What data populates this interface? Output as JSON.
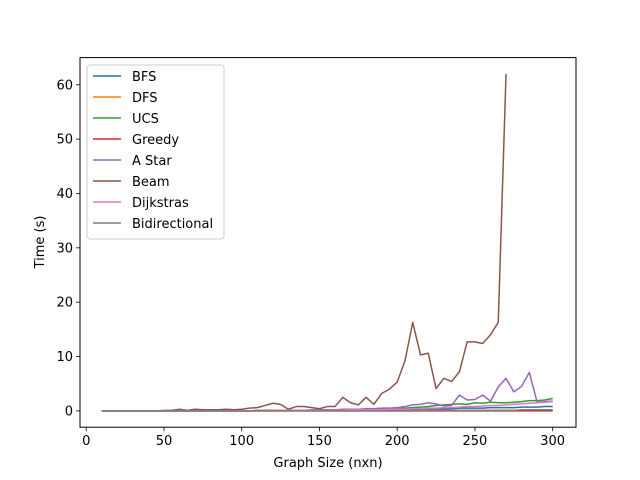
{
  "chart_data": {
    "type": "line",
    "xlabel": "Graph Size (nxn)",
    "ylabel": "Time (s)",
    "xlim": [
      -4,
      315
    ],
    "ylim": [
      -3,
      65
    ],
    "xticks": [
      0,
      50,
      100,
      150,
      200,
      250,
      300
    ],
    "yticks": [
      0,
      10,
      20,
      30,
      40,
      50,
      60
    ],
    "grid": false,
    "legend_position": "top-left",
    "x": [
      10,
      15,
      20,
      25,
      30,
      35,
      40,
      45,
      50,
      55,
      60,
      65,
      70,
      75,
      80,
      85,
      90,
      95,
      100,
      105,
      110,
      115,
      120,
      125,
      130,
      135,
      140,
      145,
      150,
      155,
      160,
      165,
      170,
      175,
      180,
      185,
      190,
      195,
      200,
      205,
      210,
      215,
      220,
      225,
      230,
      235,
      240,
      245,
      250,
      255,
      260,
      265,
      270,
      275,
      280,
      285,
      290,
      295,
      300
    ],
    "series": [
      {
        "name": "BFS",
        "color": "#1f77b4",
        "values": [
          0,
          0,
          0,
          0,
          0,
          0,
          0,
          0,
          0,
          0,
          0,
          0,
          0,
          0,
          0,
          0,
          0,
          0,
          0,
          0,
          0,
          0.1,
          0.1,
          0.1,
          0.1,
          0.1,
          0.1,
          0.1,
          0.1,
          0.1,
          0.1,
          0.1,
          0.2,
          0.2,
          0.2,
          0.2,
          0.2,
          0.2,
          0.2,
          0.3,
          0.3,
          0.3,
          0.4,
          0.4,
          0.4,
          0.4,
          0.5,
          0.5,
          0.5,
          0.5,
          0.6,
          0.6,
          0.6,
          0.6,
          0.7,
          0.7,
          0.7,
          0.8,
          0.8
        ]
      },
      {
        "name": "DFS",
        "color": "#ff7f0e",
        "values": [
          0,
          0,
          0,
          0,
          0,
          0,
          0,
          0,
          0,
          0,
          0,
          0,
          0,
          0,
          0,
          0,
          0,
          0,
          0,
          0,
          0,
          0,
          0,
          0,
          0,
          0,
          0,
          0,
          0,
          0,
          0,
          0,
          0,
          0,
          0,
          0,
          0,
          0,
          0,
          0,
          0,
          0,
          0.1,
          0.1,
          0.1,
          0.1,
          0.1,
          0.1,
          0.1,
          0.1,
          0.1,
          0.1,
          0.1,
          0.1,
          0.1,
          0.1,
          0.2,
          0.2,
          0.2
        ]
      },
      {
        "name": "UCS",
        "color": "#2ca02c",
        "values": [
          0,
          0,
          0,
          0,
          0,
          0,
          0,
          0,
          0,
          0,
          0,
          0,
          0,
          0,
          0,
          0,
          0,
          0,
          0,
          0,
          0.1,
          0.1,
          0.1,
          0.1,
          0.1,
          0.1,
          0.1,
          0.1,
          0.2,
          0.2,
          0.2,
          0.2,
          0.2,
          0.3,
          0.3,
          0.3,
          0.4,
          0.4,
          0.4,
          0.5,
          0.6,
          0.7,
          0.8,
          1.0,
          1.1,
          1.2,
          1.3,
          1.2,
          1.5,
          1.4,
          1.6,
          1.5,
          1.5,
          1.6,
          1.7,
          1.9,
          1.9,
          2.0,
          2.3
        ]
      },
      {
        "name": "Greedy",
        "color": "#d62728",
        "values": [
          0,
          0,
          0,
          0,
          0,
          0,
          0,
          0,
          0,
          0,
          0,
          0,
          0,
          0,
          0,
          0,
          0,
          0,
          0,
          0,
          0,
          0,
          0,
          0,
          0,
          0,
          0,
          0,
          0,
          0,
          0,
          0,
          0,
          0,
          0,
          0,
          0,
          0,
          0,
          0,
          0,
          0,
          0,
          0,
          0,
          0,
          0,
          0,
          0,
          0,
          0,
          0,
          0,
          0,
          0,
          0,
          0,
          0,
          0
        ]
      },
      {
        "name": "A Star",
        "color": "#9467bd",
        "values": [
          0,
          0,
          0,
          0,
          0,
          0,
          0,
          0,
          0,
          0,
          0,
          0,
          0,
          0,
          0,
          0,
          0,
          0,
          0,
          0,
          0.1,
          0.1,
          0.1,
          0.1,
          0.1,
          0.1,
          0.1,
          0.2,
          0.2,
          0.2,
          0.2,
          0.3,
          0.3,
          0.3,
          0.4,
          0.4,
          0.5,
          0.5,
          0.6,
          0.8,
          1.1,
          1.2,
          1.5,
          1.3,
          0.9,
          1.0,
          2.9,
          2.0,
          2.1,
          2.9,
          1.8,
          4.4,
          6.0,
          3.5,
          4.5,
          7.1,
          1.6,
          1.7,
          1.8
        ]
      },
      {
        "name": "Beam",
        "color": "#8c564b",
        "values": [
          0,
          0,
          0,
          0,
          0,
          0,
          0,
          0,
          0.1,
          0.1,
          0.3,
          0.1,
          0.3,
          0.2,
          0.2,
          0.2,
          0.3,
          0.2,
          0.3,
          0.5,
          0.6,
          1.0,
          1.4,
          1.2,
          0.3,
          0.8,
          0.8,
          0.6,
          0.4,
          0.8,
          0.8,
          2.5,
          1.5,
          1.1,
          2.5,
          1.2,
          3.2,
          4.0,
          5.3,
          9.2,
          16.3,
          10.3,
          10.6,
          4.1,
          6.0,
          5.4,
          7.2,
          12.7,
          12.7,
          12.4,
          14.0,
          16.3,
          62.0,
          0,
          0,
          0,
          0,
          0,
          0
        ]
      },
      {
        "name": "Dijkstras",
        "color": "#e377c2",
        "values": [
          0,
          0,
          0,
          0,
          0,
          0,
          0,
          0,
          0,
          0,
          0,
          0,
          0,
          0,
          0,
          0,
          0,
          0,
          0,
          0,
          0,
          0,
          0,
          0.1,
          0.1,
          0.1,
          0.1,
          0.1,
          0.1,
          0.1,
          0.1,
          0.1,
          0.2,
          0.2,
          0.2,
          0.2,
          0.2,
          0.3,
          0.3,
          0.3,
          0.4,
          0.4,
          0.5,
          0.5,
          0.6,
          0.6,
          0.7,
          0.8,
          0.8,
          0.9,
          1.0,
          1.0,
          1.1,
          1.2,
          1.3,
          1.4,
          1.5,
          1.6,
          1.7
        ]
      },
      {
        "name": "Bidirectional",
        "color": "#7f7f7f",
        "values": [
          0,
          0,
          0,
          0,
          0,
          0,
          0,
          0,
          0,
          0,
          0,
          0,
          0,
          0,
          0,
          0,
          0,
          0,
          0,
          0,
          0,
          0,
          0,
          0,
          0,
          0,
          0,
          0,
          0,
          0,
          0,
          0,
          0,
          0,
          0,
          0,
          0,
          0,
          0,
          0,
          0,
          0,
          0.1,
          0.1,
          0.1,
          0.1,
          0.1,
          0.1,
          0.1,
          0.1,
          0.1,
          0.1,
          0.1,
          0.1,
          0.2,
          0.2,
          0.2,
          0.2,
          0.2
        ]
      }
    ]
  }
}
